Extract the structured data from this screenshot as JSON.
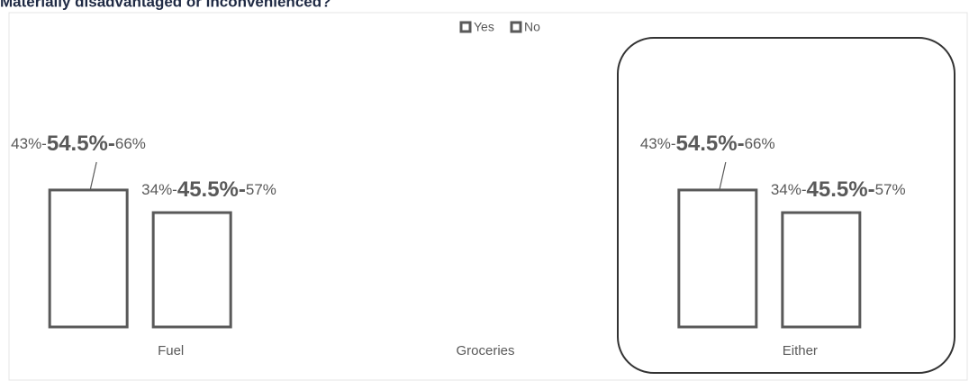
{
  "chart_data": {
    "type": "bar",
    "title": "Materially disadvantaged or inconvenienced?",
    "categories": [
      "Fuel",
      "Groceries",
      "Either"
    ],
    "series": [
      {
        "name": "Yes",
        "color": "#595959",
        "values": [
          54.5,
          null,
          54.5
        ],
        "value_labels": [
          "43%-54.5%-66%",
          null,
          "43%-54.5%-66%"
        ]
      },
      {
        "name": "No",
        "color": "#595959",
        "values": [
          45.5,
          null,
          45.5
        ],
        "value_labels": [
          "34%-45.5%-57%",
          null,
          "34%-45.5%-57%"
        ]
      }
    ],
    "ylim": [
      0,
      100
    ]
  }
}
